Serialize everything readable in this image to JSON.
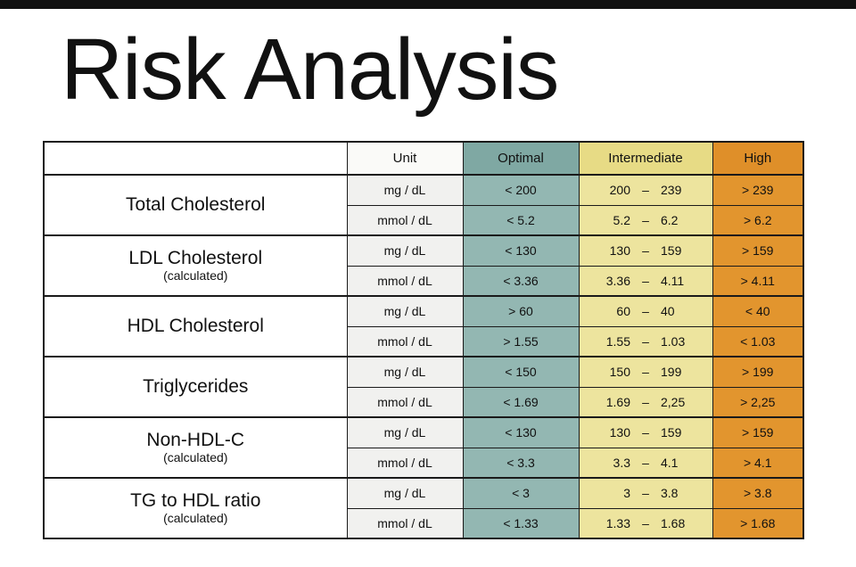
{
  "title": "Risk Analysis",
  "colors": {
    "top_bar": "#111111",
    "table_border": "#1a1a1a",
    "unit_header": "#fafaf8",
    "unit_cell": "#f1f1ef",
    "optimal_header": "#7fa8a3",
    "optimal_cell": "#93b7b2",
    "intermediate_header": "#e7db85",
    "intermediate_cell": "#ede49e",
    "high_header": "#df8f29",
    "high_cell": "#e2952e"
  },
  "table": {
    "headers": {
      "label": "",
      "unit": "Unit",
      "optimal": "Optimal",
      "intermediate": "Intermediate",
      "high": "High"
    },
    "dash": "–",
    "groups": [
      {
        "label": "Total Cholesterol",
        "sublabel": "",
        "rows": [
          {
            "unit": "mg / dL",
            "optimal": "< 200",
            "inter_low": "200",
            "inter_high": "239",
            "high": "> 239"
          },
          {
            "unit": "mmol / dL",
            "optimal": "< 5.2",
            "inter_low": "5.2",
            "inter_high": "6.2",
            "high": "> 6.2"
          }
        ]
      },
      {
        "label": "LDL Cholesterol",
        "sublabel": "(calculated)",
        "rows": [
          {
            "unit": "mg / dL",
            "optimal": "< 130",
            "inter_low": "130",
            "inter_high": "159",
            "high": "> 159"
          },
          {
            "unit": "mmol / dL",
            "optimal": "< 3.36",
            "inter_low": "3.36",
            "inter_high": "4.11",
            "high": "> 4.11"
          }
        ]
      },
      {
        "label": "HDL Cholesterol",
        "sublabel": "",
        "rows": [
          {
            "unit": "mg / dL",
            "optimal": "> 60",
            "inter_low": "60",
            "inter_high": "40",
            "high": "< 40"
          },
          {
            "unit": "mmol / dL",
            "optimal": "> 1.55",
            "inter_low": "1.55",
            "inter_high": "1.03",
            "high": "< 1.03"
          }
        ]
      },
      {
        "label": "Triglycerides",
        "sublabel": "",
        "rows": [
          {
            "unit": "mg / dL",
            "optimal": "< 150",
            "inter_low": "150",
            "inter_high": "199",
            "high": "> 199"
          },
          {
            "unit": "mmol / dL",
            "optimal": "< 1.69",
            "inter_low": "1.69",
            "inter_high": "2,25",
            "high": "> 2,25"
          }
        ]
      },
      {
        "label": "Non-HDL-C",
        "sublabel": "(calculated)",
        "rows": [
          {
            "unit": "mg / dL",
            "optimal": "< 130",
            "inter_low": "130",
            "inter_high": "159",
            "high": "> 159"
          },
          {
            "unit": "mmol / dL",
            "optimal": "< 3.3",
            "inter_low": "3.3",
            "inter_high": "4.1",
            "high": "> 4.1"
          }
        ]
      },
      {
        "label": "TG to HDL ratio",
        "sublabel": "(calculated)",
        "rows": [
          {
            "unit": "mg / dL",
            "optimal": "< 3",
            "inter_low": "3",
            "inter_high": "3.8",
            "high": "> 3.8"
          },
          {
            "unit": "mmol / dL",
            "optimal": "< 1.33",
            "inter_low": "1.33",
            "inter_high": "1.68",
            "high": "> 1.68"
          }
        ]
      }
    ]
  }
}
